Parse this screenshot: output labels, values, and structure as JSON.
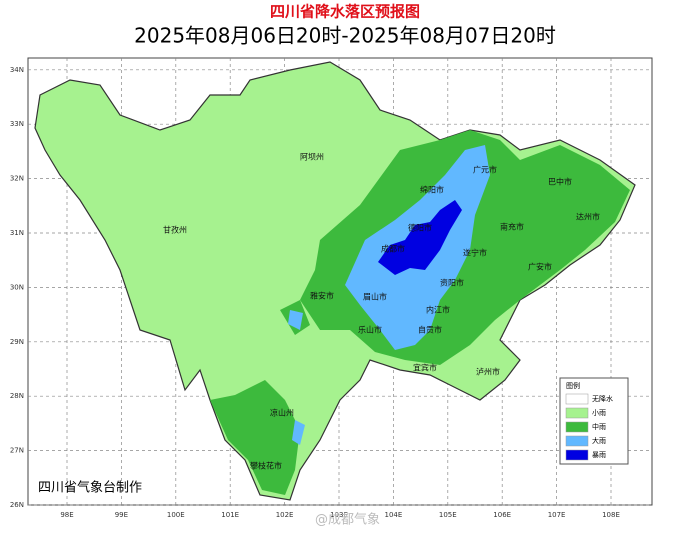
{
  "title": "四川省降水落区预报图",
  "subtitle": "2025年08月06日20时-2025年08月07日20时",
  "lon_ticks": [
    {
      "value": 98,
      "label": "98E"
    },
    {
      "value": 99,
      "label": "99E"
    },
    {
      "value": 100,
      "label": "100E"
    },
    {
      "value": 101,
      "label": "101E"
    },
    {
      "value": 102,
      "label": "102E"
    },
    {
      "value": 103,
      "label": "103E"
    },
    {
      "value": 104,
      "label": "104E"
    },
    {
      "value": 105,
      "label": "105E"
    },
    {
      "value": 106,
      "label": "106E"
    },
    {
      "value": 107,
      "label": "107E"
    },
    {
      "value": 108,
      "label": "108E"
    }
  ],
  "lat_ticks": [
    {
      "value": 26,
      "label": "26N"
    },
    {
      "value": 27,
      "label": "27N"
    },
    {
      "value": 28,
      "label": "28N"
    },
    {
      "value": 29,
      "label": "29N"
    },
    {
      "value": 30,
      "label": "30N"
    },
    {
      "value": 31,
      "label": "31N"
    },
    {
      "value": 32,
      "label": "32N"
    },
    {
      "value": 33,
      "label": "33N"
    },
    {
      "value": 34,
      "label": "34N"
    }
  ],
  "cities": [
    "阿坝州",
    "甘孜州",
    "广元市",
    "巴中市",
    "绵阳市",
    "达州市",
    "德阳市",
    "南充市",
    "成都市",
    "遂宁市",
    "广安市",
    "雅安市",
    "眉山市",
    "资阳市",
    "乐山市",
    "内江市",
    "自贡市",
    "宜宾市",
    "泸州市",
    "凉山州",
    "攀枝花市"
  ],
  "legend": {
    "title": "图例",
    "items": [
      {
        "name": "无降水",
        "color": "#ffffff"
      },
      {
        "name": "小雨",
        "color": "#a6f28f"
      },
      {
        "name": "中雨",
        "color": "#3dba3d"
      },
      {
        "name": "大雨",
        "color": "#61b8ff"
      },
      {
        "name": "暴雨",
        "color": "#0000e1"
      }
    ]
  },
  "credit": "四川省气象台制作",
  "watermark": "@成都气象"
}
